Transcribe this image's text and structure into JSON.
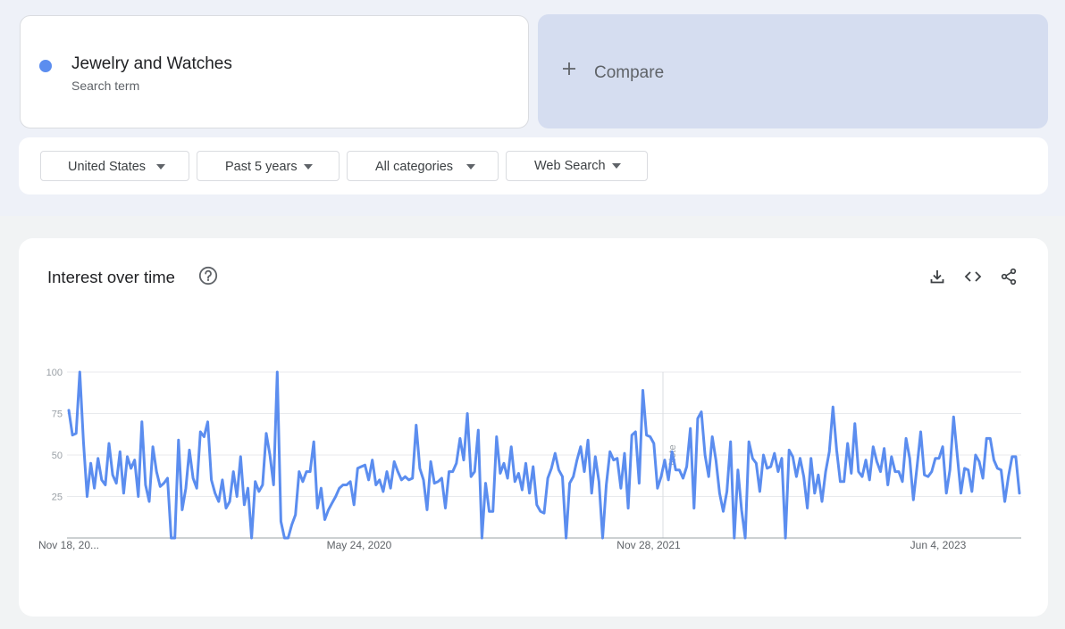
{
  "search_term": {
    "name": "Jewelry and Watches",
    "subtitle": "Search term",
    "color": "#5b8def"
  },
  "compare": {
    "label": "Compare"
  },
  "filters": [
    {
      "label": "United States"
    },
    {
      "label": "Past 5 years"
    },
    {
      "label": "All categories"
    },
    {
      "label": "Web Search"
    }
  ],
  "chart": {
    "title": "Interest over time",
    "icons": [
      "help-icon",
      "download-icon",
      "embed-icon",
      "share-icon"
    ],
    "note_label": "Note"
  },
  "chart_data": {
    "type": "line",
    "line_color": "#5b8def",
    "ylim": [
      0,
      100
    ],
    "y_ticks": [
      25,
      50,
      75,
      100
    ],
    "x_tick_labels": [
      "Nov 18, 20...",
      "May 24, 2020",
      "Nov 28, 2021",
      "Jun 4, 2023"
    ],
    "series": [
      {
        "values": [
          77,
          62,
          63,
          100,
          58,
          25,
          45,
          30,
          48,
          35,
          32,
          57,
          38,
          33,
          52,
          27,
          49,
          42,
          47,
          25,
          70,
          32,
          22,
          55,
          40,
          31,
          33,
          36,
          0,
          0,
          59,
          17,
          30,
          53,
          36,
          30,
          64,
          61,
          70,
          35,
          27,
          22,
          35,
          18,
          22,
          40,
          25,
          49,
          20,
          30,
          0,
          34,
          28,
          32,
          63,
          50,
          32,
          100,
          10,
          0,
          0,
          8,
          14,
          40,
          34,
          40,
          40,
          58,
          18,
          30,
          11,
          17,
          21,
          25,
          30,
          32,
          32,
          34,
          20,
          42,
          43,
          44,
          35,
          47,
          32,
          35,
          28,
          40,
          30,
          46,
          40,
          35,
          37,
          35,
          36,
          68,
          42,
          35,
          17,
          46,
          33,
          34,
          36,
          18,
          40,
          40,
          45,
          60,
          47,
          75,
          37,
          40,
          65,
          0,
          33,
          16,
          16,
          61,
          39,
          45,
          36,
          55,
          34,
          39,
          29,
          45,
          27,
          43,
          20,
          16,
          15,
          36,
          42,
          51,
          41,
          37,
          0,
          33,
          37,
          47,
          55,
          40,
          59,
          27,
          49,
          34,
          0,
          32,
          52,
          47,
          48,
          30,
          51,
          18,
          62,
          64,
          33,
          89,
          62,
          61,
          57,
          30,
          37,
          47,
          35,
          52,
          41,
          41,
          36,
          43,
          66,
          18,
          72,
          76,
          50,
          37,
          61,
          47,
          27,
          16,
          28,
          58,
          0,
          41,
          17,
          0,
          58,
          48,
          45,
          28,
          50,
          42,
          43,
          51,
          40,
          48,
          0,
          53,
          49,
          37,
          48,
          37,
          18,
          48,
          27,
          38,
          22,
          40,
          52,
          79,
          53,
          34,
          34,
          57,
          39,
          69,
          40,
          37,
          47,
          35,
          55,
          46,
          40,
          54,
          32,
          49,
          40,
          40,
          34,
          60,
          48,
          23,
          43,
          64,
          38,
          37,
          40,
          48,
          48,
          55,
          27,
          41,
          73,
          50,
          27,
          42,
          41,
          28,
          50,
          46,
          36,
          60,
          60,
          47,
          42,
          41,
          22,
          37,
          49,
          49,
          27
        ]
      }
    ]
  }
}
